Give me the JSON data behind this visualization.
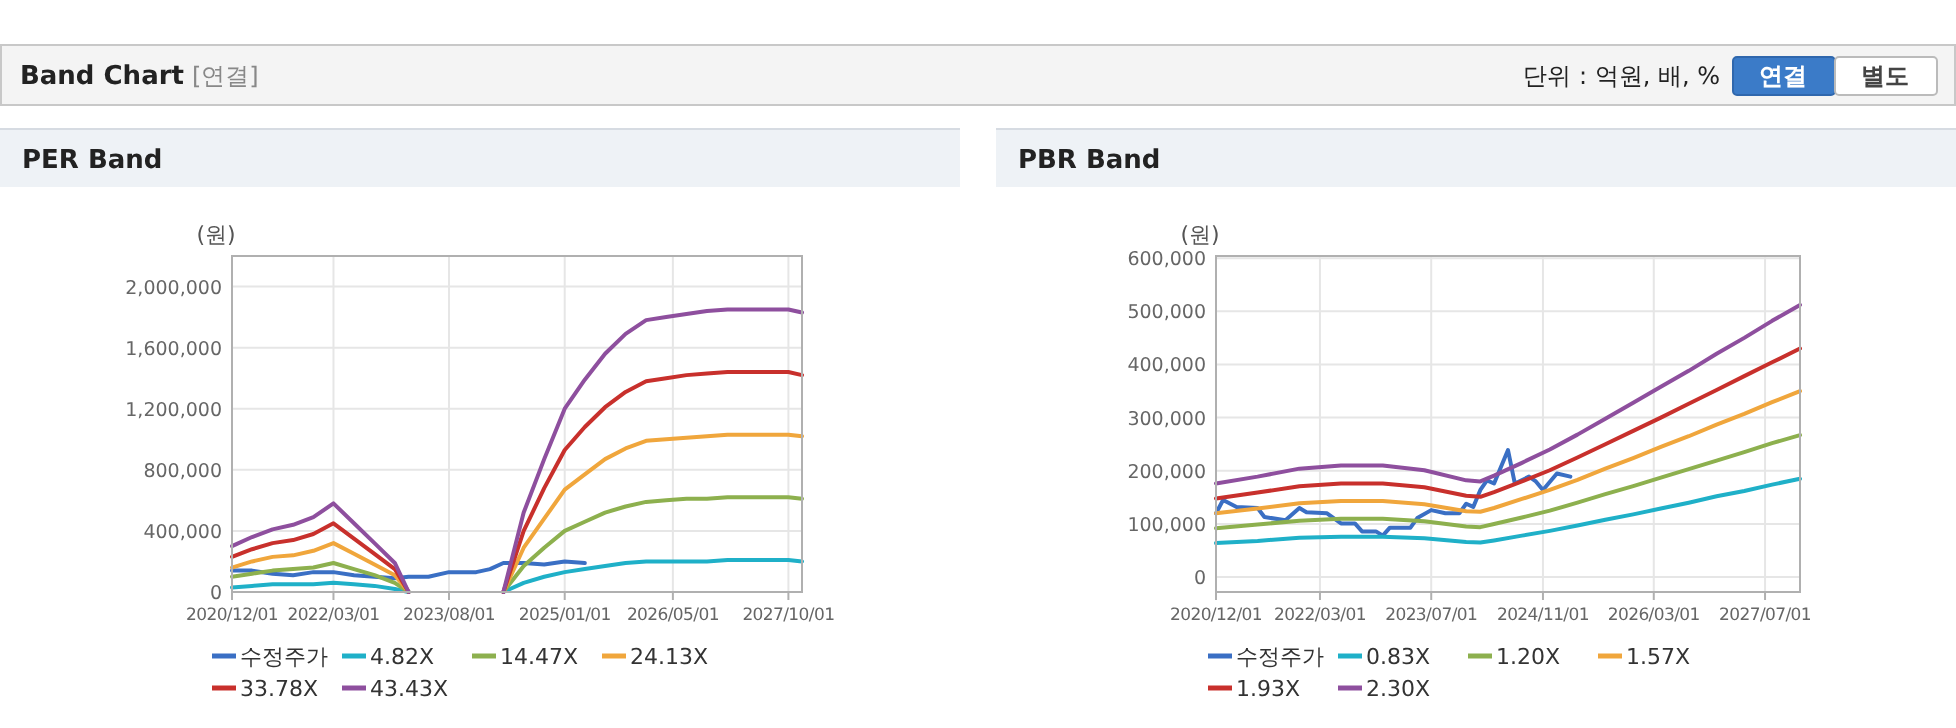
{
  "chart_data": [
    {
      "type": "other",
      "title": "Band Chart",
      "annotations": [
        "[연결]",
        "단위 : 억원, 배, %",
        "연결",
        "별도"
      ]
    },
    {
      "type": "line",
      "title": "PER Band",
      "ylabel": "(원)",
      "grid": true,
      "legend": "bottom",
      "xlim": [
        "2020-12-01",
        "2027-12-01"
      ],
      "ylim": [
        0,
        2200000
      ],
      "xticks": [
        {
          "value": "2020-12-01",
          "label": "2020/12/01"
        },
        {
          "value": "2022-03-01",
          "label": "2022/03/01"
        },
        {
          "value": "2023-08-01",
          "label": "2023/08/01"
        },
        {
          "value": "2025-01-01",
          "label": "2025/01/01"
        },
        {
          "value": "2026-05-01",
          "label": "2026/05/01"
        },
        {
          "value": "2027-10-01",
          "label": "2027/10/01"
        }
      ],
      "yticks": [
        {
          "value": 0,
          "label": "0"
        },
        {
          "value": 400000,
          "label": "400,000"
        },
        {
          "value": 800000,
          "label": "800,000"
        },
        {
          "value": 1200000,
          "label": "1,200,000"
        },
        {
          "value": 1600000,
          "label": "1,600,000"
        },
        {
          "value": 2000000,
          "label": "2,000,000"
        }
      ],
      "x": [
        "2020-12",
        "2021-03",
        "2021-06",
        "2021-09",
        "2021-12",
        "2022-03",
        "2022-06",
        "2022-09",
        "2022-12",
        "2023-02",
        "2023-08",
        "2024-04",
        "2024-07",
        "2024-10",
        "2025-01",
        "2025-04",
        "2025-07",
        "2025-10",
        "2026-01",
        "2026-04",
        "2026-07",
        "2026-10",
        "2027-01",
        "2027-04",
        "2027-07",
        "2027-10",
        "2027-12"
      ],
      "series": [
        {
          "name": "수정주가",
          "color": "#3a6fc4",
          "x": [
            "2020-12",
            "2021-03",
            "2021-06",
            "2021-09",
            "2021-12",
            "2022-03",
            "2022-06",
            "2022-09",
            "2022-12",
            "2023-02",
            "2023-05",
            "2023-08",
            "2023-12",
            "2024-02",
            "2024-04",
            "2024-07",
            "2024-10",
            "2025-01",
            "2025-04"
          ],
          "values": [
            140000,
            140000,
            120000,
            110000,
            130000,
            130000,
            110000,
            100000,
            90000,
            100000,
            100000,
            130000,
            130000,
            150000,
            190000,
            190000,
            180000,
            200000,
            190000
          ]
        },
        {
          "name": "4.82X",
          "color": "#1fb0c8",
          "values": [
            30000,
            40000,
            50000,
            50000,
            50000,
            60000,
            50000,
            40000,
            20000,
            0,
            null,
            0,
            60000,
            100000,
            130000,
            150000,
            170000,
            190000,
            200000,
            200000,
            200000,
            200000,
            210000,
            210000,
            210000,
            210000,
            200000
          ]
        },
        {
          "name": "14.47X",
          "color": "#8db04e",
          "values": [
            100000,
            120000,
            140000,
            150000,
            160000,
            190000,
            150000,
            110000,
            60000,
            0,
            null,
            0,
            170000,
            290000,
            400000,
            460000,
            520000,
            560000,
            590000,
            600000,
            610000,
            610000,
            620000,
            620000,
            620000,
            620000,
            610000
          ]
        },
        {
          "name": "24.13X",
          "color": "#f0a63c",
          "values": [
            160000,
            200000,
            230000,
            240000,
            270000,
            320000,
            250000,
            180000,
            110000,
            0,
            null,
            0,
            290000,
            480000,
            670000,
            770000,
            870000,
            940000,
            990000,
            1000000,
            1010000,
            1020000,
            1030000,
            1030000,
            1030000,
            1030000,
            1020000
          ]
        },
        {
          "name": "33.78X",
          "color": "#c8302c",
          "values": [
            230000,
            280000,
            320000,
            340000,
            380000,
            450000,
            350000,
            250000,
            150000,
            0,
            null,
            0,
            400000,
            680000,
            930000,
            1080000,
            1210000,
            1310000,
            1380000,
            1400000,
            1420000,
            1430000,
            1440000,
            1440000,
            1440000,
            1440000,
            1420000
          ]
        },
        {
          "name": "43.43X",
          "color": "#8e4f9e",
          "values": [
            300000,
            360000,
            410000,
            440000,
            490000,
            580000,
            450000,
            320000,
            190000,
            0,
            null,
            0,
            520000,
            870000,
            1200000,
            1390000,
            1560000,
            1690000,
            1780000,
            1800000,
            1820000,
            1840000,
            1850000,
            1850000,
            1850000,
            1850000,
            1830000
          ]
        }
      ]
    },
    {
      "type": "line",
      "title": "PBR Band",
      "ylabel": "(원)",
      "grid": true,
      "legend": "bottom",
      "xlim": [
        "2020-12-01",
        "2027-12-01"
      ],
      "ylim": [
        -28000,
        604000
      ],
      "xticks": [
        {
          "value": "2020-12-01",
          "label": "2020/12/01"
        },
        {
          "value": "2022-03-01",
          "label": "2022/03/01"
        },
        {
          "value": "2023-07-01",
          "label": "2023/07/01"
        },
        {
          "value": "2024-11-01",
          "label": "2024/11/01"
        },
        {
          "value": "2026-03-01",
          "label": "2026/03/01"
        },
        {
          "value": "2027-07-01",
          "label": "2027/07/01"
        }
      ],
      "yticks": [
        {
          "value": 0,
          "label": "0"
        },
        {
          "value": 100000,
          "label": "100,000"
        },
        {
          "value": 200000,
          "label": "200,000"
        },
        {
          "value": 300000,
          "label": "300,000"
        },
        {
          "value": 400000,
          "label": "400,000"
        },
        {
          "value": 500000,
          "label": "500,000"
        },
        {
          "value": 600000,
          "label": "600,000"
        }
      ],
      "x": [
        "2020-12",
        "2021-06",
        "2021-12",
        "2022-06",
        "2022-12",
        "2023-06",
        "2023-12",
        "2024-02",
        "2024-04",
        "2024-08",
        "2024-12",
        "2025-04",
        "2025-08",
        "2025-12",
        "2026-04",
        "2026-08",
        "2026-12",
        "2027-04",
        "2027-08",
        "2027-12"
      ],
      "series": [
        {
          "name": "수정주가",
          "color": "#3a6fc4",
          "x": [
            "2020-12",
            "2021-01",
            "2021-03",
            "2021-06",
            "2021-07",
            "2021-10",
            "2021-12",
            "2022-01",
            "2022-04",
            "2022-06",
            "2022-08",
            "2022-09",
            "2022-11",
            "2022-12",
            "2023-01",
            "2023-04",
            "2023-05",
            "2023-07",
            "2023-09",
            "2023-11",
            "2023-12",
            "2024-01",
            "2024-02",
            "2024-03",
            "2024-04",
            "2024-06",
            "2024-07",
            "2024-09",
            "2024-10",
            "2024-11",
            "2025-01",
            "2025-03"
          ],
          "values": [
            120000,
            145000,
            132000,
            130000,
            113000,
            107000,
            130000,
            122000,
            120000,
            101000,
            101000,
            86000,
            86000,
            78000,
            93000,
            93000,
            111000,
            126000,
            120000,
            120000,
            138000,
            132000,
            164000,
            182000,
            176000,
            239000,
            176000,
            189000,
            180000,
            164000,
            195000,
            189000
          ]
        },
        {
          "name": "0.83X",
          "color": "#1fb0c8",
          "values": [
            64000,
            68000,
            74000,
            76000,
            76000,
            73000,
            66000,
            65000,
            69000,
            78000,
            87000,
            97000,
            108000,
            118000,
            129000,
            140000,
            152000,
            162000,
            174000,
            185000
          ]
        },
        {
          "name": "1.20X",
          "color": "#8db04e",
          "values": [
            92000,
            99000,
            106000,
            110000,
            110000,
            105000,
            95000,
            94000,
            100000,
            112000,
            125000,
            140000,
            156000,
            171000,
            187000,
            203000,
            219000,
            235000,
            252000,
            267000
          ]
        },
        {
          "name": "1.57X",
          "color": "#f0a63c",
          "values": [
            120000,
            129000,
            139000,
            143000,
            143000,
            137000,
            124000,
            123000,
            130000,
            147000,
            164000,
            183000,
            204000,
            224000,
            245000,
            265000,
            287000,
            307000,
            329000,
            350000
          ]
        },
        {
          "name": "1.93X",
          "color": "#c8302c",
          "values": [
            148000,
            159000,
            171000,
            176000,
            176000,
            169000,
            153000,
            151000,
            160000,
            180000,
            201000,
            225000,
            250000,
            275000,
            300000,
            326000,
            352000,
            378000,
            404000,
            430000
          ]
        },
        {
          "name": "2.30X",
          "color": "#8e4f9e",
          "values": [
            176000,
            189000,
            204000,
            210000,
            210000,
            201000,
            182000,
            180000,
            191000,
            215000,
            240000,
            268000,
            298000,
            328000,
            358000,
            388000,
            420000,
            450000,
            482000,
            512000
          ]
        }
      ]
    }
  ]
}
